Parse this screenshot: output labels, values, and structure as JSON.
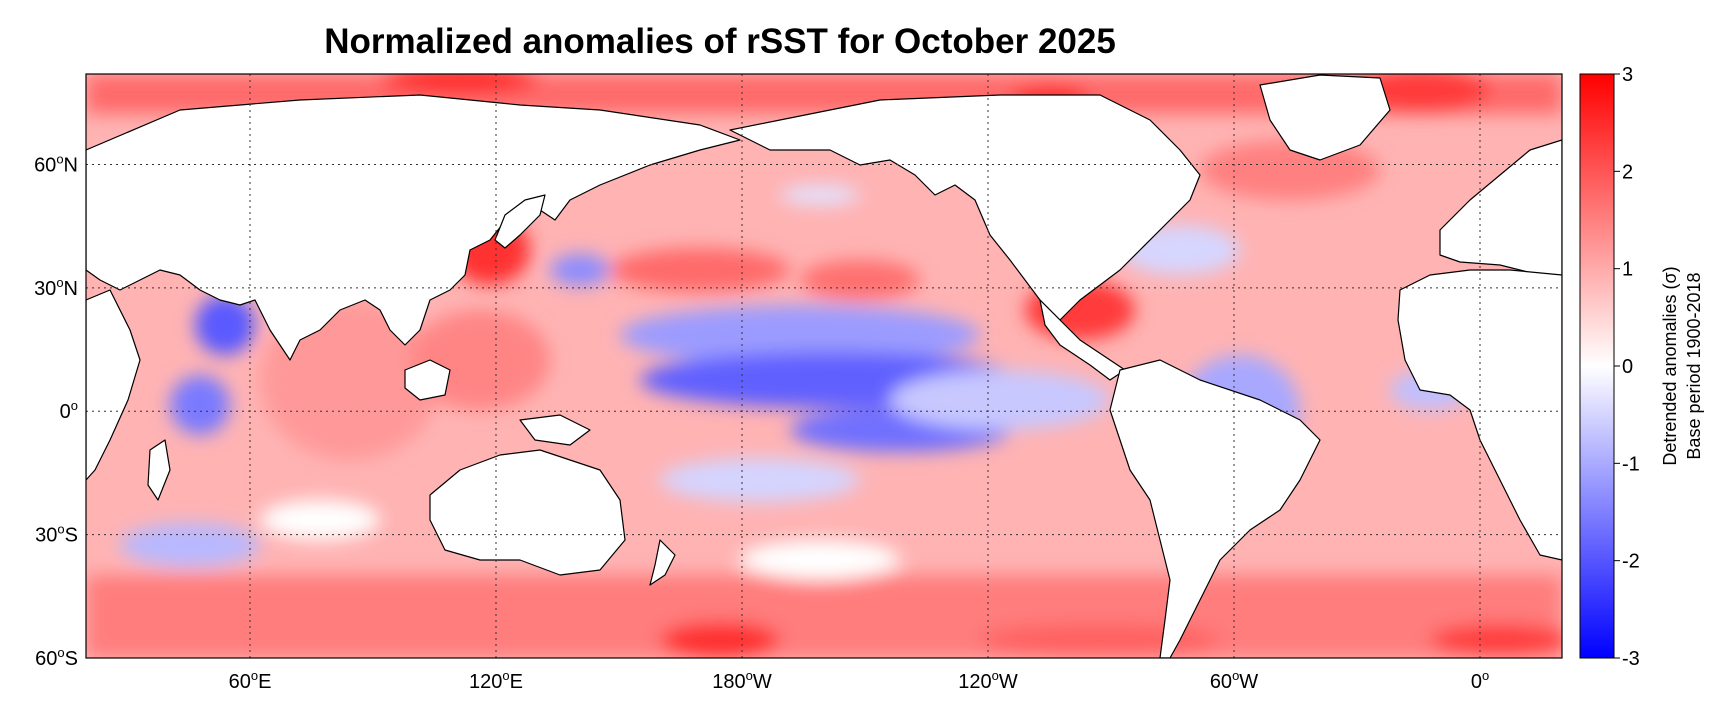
{
  "title": "Normalized anomalies of rSST for October 2025",
  "map": {
    "lon_range": [
      20,
      380
    ],
    "lat_range": [
      -60,
      82
    ],
    "lat_ticks": [
      {
        "value": 60,
        "label": "60",
        "sup": "o",
        "suffix": "N"
      },
      {
        "value": 30,
        "label": "30",
        "sup": "o",
        "suffix": "N"
      },
      {
        "value": 0,
        "label": "0",
        "sup": "o",
        "suffix": ""
      },
      {
        "value": -30,
        "label": "30",
        "sup": "o",
        "suffix": "S"
      },
      {
        "value": -60,
        "label": "60",
        "sup": "o",
        "suffix": "S"
      }
    ],
    "lon_ticks": [
      {
        "value": 60,
        "label": "60",
        "sup": "o",
        "suffix": "E"
      },
      {
        "value": 120,
        "label": "120",
        "sup": "o",
        "suffix": "E"
      },
      {
        "value": 180,
        "label": "180",
        "sup": "o",
        "suffix": "W"
      },
      {
        "value": 240,
        "label": "120",
        "sup": "o",
        "suffix": "W"
      },
      {
        "value": 300,
        "label": "60",
        "sup": "o",
        "suffix": "W"
      },
      {
        "value": 360,
        "label": "0",
        "sup": "o",
        "suffix": ""
      }
    ],
    "grid": "dotted",
    "land_color": "#ffffff",
    "coastline_color": "#000000"
  },
  "colorbar": {
    "ticks": [
      "3",
      "2",
      "1",
      "0",
      "-1",
      "-2",
      "-3"
    ],
    "range": [
      -3,
      3
    ],
    "label_line1": "Detrended anomalies (σ)",
    "label_line2": "Base period 1900-2018",
    "colors": {
      "max": "#ff0000",
      "mid": "#ffffff",
      "min": "#0000ff"
    }
  }
}
